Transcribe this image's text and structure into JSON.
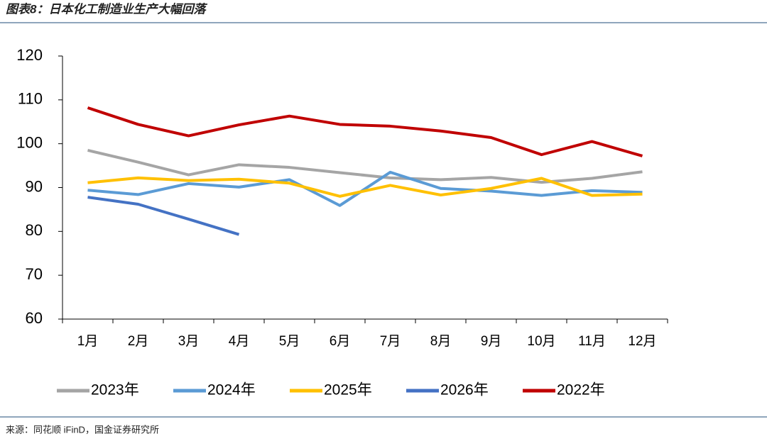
{
  "title": "图表8：日本化工制造业生产大幅回落",
  "source": "来源：同花顺 iFinD，国金证券研究所",
  "chart_data": {
    "type": "line",
    "categories": [
      "1月",
      "2月",
      "3月",
      "4月",
      "5月",
      "6月",
      "7月",
      "8月",
      "9月",
      "10月",
      "11月",
      "12月"
    ],
    "series": [
      {
        "name": "2023年",
        "color": "#a5a5a5",
        "values": [
          98.5,
          95.8,
          92.9,
          95.2,
          94.6,
          93.4,
          92.2,
          91.8,
          92.3,
          91.2,
          92.1,
          93.6
        ]
      },
      {
        "name": "2024年",
        "color": "#5b9bd5",
        "values": [
          89.4,
          88.4,
          90.9,
          90.1,
          91.8,
          85.9,
          93.5,
          89.8,
          89.2,
          88.2,
          89.3,
          88.9
        ]
      },
      {
        "name": "2025年",
        "color": "#ffc000",
        "values": [
          91.1,
          92.2,
          91.6,
          91.9,
          91.0,
          88.0,
          90.5,
          88.3,
          89.8,
          92.1,
          88.2,
          88.5
        ]
      },
      {
        "name": "2026年",
        "color": "#4472c4",
        "values": [
          87.8,
          86.2,
          82.8,
          79.3,
          null,
          null,
          null,
          null,
          null,
          null,
          null,
          null
        ]
      },
      {
        "name": "2022年",
        "color": "#c00000",
        "values": [
          108.2,
          104.4,
          101.8,
          104.3,
          106.3,
          104.4,
          104.0,
          102.9,
          101.4,
          97.5,
          100.5,
          97.2
        ]
      }
    ],
    "ylim": [
      60,
      120
    ],
    "yticks": [
      60,
      70,
      80,
      90,
      100,
      110,
      120
    ],
    "grid": false
  }
}
